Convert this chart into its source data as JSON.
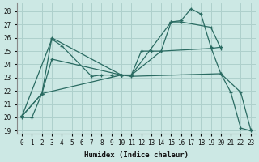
{
  "xlabel": "Humidex (Indice chaleur)",
  "background_color": "#cce8e4",
  "grid_color": "#aed0cc",
  "line_color": "#2a6b62",
  "xlim": [
    -0.5,
    23.5
  ],
  "ylim": [
    18.8,
    28.6
  ],
  "yticks": [
    19,
    20,
    21,
    22,
    23,
    24,
    25,
    26,
    27,
    28
  ],
  "xticks": [
    0,
    1,
    2,
    3,
    4,
    5,
    6,
    7,
    8,
    9,
    10,
    11,
    12,
    13,
    14,
    15,
    16,
    17,
    18,
    19,
    20,
    21,
    22,
    23
  ],
  "series": [
    {
      "x": [
        0,
        3,
        4,
        7,
        8,
        9,
        10,
        11,
        20,
        22,
        23
      ],
      "y": [
        20.1,
        25.9,
        25.4,
        23.1,
        23.2,
        23.2,
        23.2,
        23.1,
        23.3,
        21.9,
        19.1
      ]
    },
    {
      "x": [
        0,
        1,
        2,
        10,
        11,
        12,
        13,
        14,
        19,
        20
      ],
      "y": [
        20.0,
        20.0,
        21.8,
        23.2,
        23.2,
        25.0,
        25.0,
        25.0,
        25.2,
        25.3
      ]
    },
    {
      "x": [
        0,
        2,
        3,
        10,
        11,
        14,
        15,
        16,
        17,
        18,
        19,
        20,
        21,
        22,
        23
      ],
      "y": [
        20.1,
        21.8,
        26.0,
        23.2,
        23.2,
        25.0,
        27.2,
        27.3,
        28.2,
        27.8,
        25.3,
        23.3,
        21.9,
        19.2,
        19.0
      ]
    },
    {
      "x": [
        0,
        2,
        3,
        10,
        11,
        15,
        16,
        19,
        20
      ],
      "y": [
        20.1,
        21.8,
        24.4,
        23.2,
        23.2,
        27.2,
        27.2,
        26.8,
        25.2
      ]
    }
  ]
}
